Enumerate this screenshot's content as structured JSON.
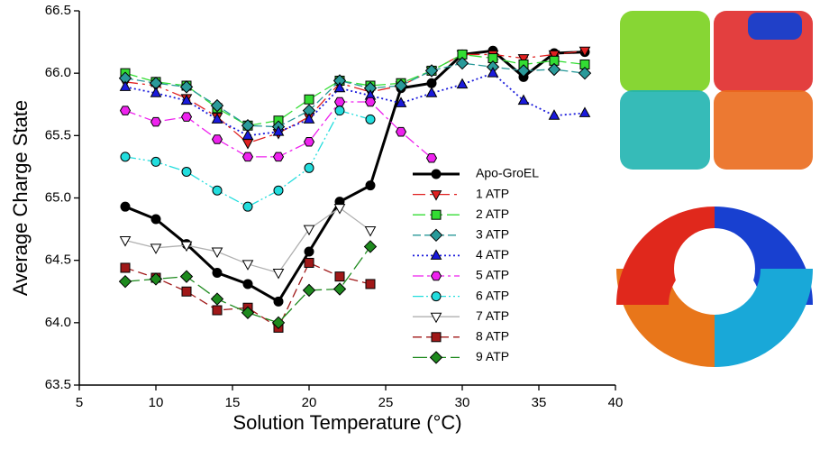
{
  "chart_data": {
    "type": "line",
    "xlabel": "Solution Temperature (°C)",
    "ylabel": "Average Charge State",
    "x": [
      8,
      10,
      12,
      14,
      16,
      18,
      20,
      22,
      24,
      26,
      28,
      30,
      32,
      34,
      36,
      38
    ],
    "xlim": [
      5,
      40
    ],
    "xticks": [
      5,
      10,
      15,
      20,
      25,
      30,
      35,
      40
    ],
    "ylim": [
      63.5,
      66.5
    ],
    "yticks": [
      63.5,
      {
        "value": 64,
        "label": "64.0"
      },
      64.5,
      {
        "value": 65,
        "label": "65.0"
      },
      65.5,
      {
        "value": 66,
        "label": "66.0"
      },
      66.5
    ],
    "legend": "lower right",
    "series": [
      {
        "name": "Apo-GroEL",
        "color": "#000000",
        "marker": "circle",
        "dash": "",
        "width": 3,
        "values": [
          64.93,
          64.83,
          64.63,
          64.4,
          64.31,
          64.17,
          64.57,
          64.97,
          65.1,
          65.88,
          65.92,
          66.15,
          66.18,
          65.97,
          66.16,
          66.17
        ]
      },
      {
        "name": "1 ATP",
        "color": "#e02020",
        "marker": "triangle-down",
        "dash": "14,5,3,5",
        "width": 1.3,
        "values": [
          65.93,
          65.9,
          65.8,
          65.65,
          65.44,
          65.52,
          65.65,
          65.92,
          65.85,
          65.9,
          66.02,
          66.15,
          66.15,
          66.12,
          66.15,
          66.18
        ]
      },
      {
        "name": "2 ATP",
        "color": "#33dd33",
        "marker": "square",
        "dash": "14,5",
        "width": 1.3,
        "values": [
          66.0,
          65.93,
          65.9,
          65.72,
          65.58,
          65.62,
          65.79,
          65.94,
          65.9,
          65.92,
          66.02,
          66.15,
          66.12,
          66.07,
          66.1,
          66.07
        ]
      },
      {
        "name": "3 ATP",
        "color": "#2a9a9a",
        "marker": "diamond",
        "dash": "9,4",
        "width": 1.3,
        "values": [
          65.96,
          65.92,
          65.89,
          65.74,
          65.58,
          65.57,
          65.7,
          65.94,
          65.88,
          65.9,
          66.02,
          66.08,
          66.05,
          66.02,
          66.03,
          66.0
        ]
      },
      {
        "name": "4 ATP",
        "color": "#1a1adc",
        "marker": "triangle-up",
        "dash": "2,3",
        "width": 1.8,
        "values": [
          65.89,
          65.84,
          65.78,
          65.63,
          65.5,
          65.53,
          65.63,
          65.88,
          65.82,
          65.76,
          65.84,
          65.91,
          66.0,
          65.78,
          65.66,
          65.68
        ]
      },
      {
        "name": "5 ATP",
        "color": "#ee22ee",
        "marker": "hexagon",
        "dash": "12,4,3,4",
        "width": 1.3,
        "values": [
          65.7,
          65.61,
          65.65,
          65.47,
          65.33,
          65.33,
          65.45,
          65.77,
          65.77,
          65.53,
          65.32,
          null,
          null,
          null,
          null,
          null
        ]
      },
      {
        "name": "6 ATP",
        "color": "#22dddd",
        "marker": "circle",
        "dash": "12,3,2,3,2,3",
        "width": 1.3,
        "values": [
          65.33,
          65.29,
          65.21,
          65.06,
          64.93,
          65.06,
          65.24,
          65.7,
          65.63,
          null,
          null,
          null,
          null,
          null,
          null,
          null
        ]
      },
      {
        "name": "7 ATP",
        "color": "#b0b0b0",
        "marker_fill": "#ffffff",
        "marker": "triangle-down",
        "dash": "",
        "width": 1.3,
        "values": [
          64.66,
          64.6,
          64.62,
          64.57,
          64.47,
          64.4,
          64.75,
          64.92,
          64.74,
          null,
          null,
          null,
          null,
          null,
          null,
          null
        ]
      },
      {
        "name": "8 ATP",
        "color": "#a01818",
        "marker": "square",
        "dash": "10,5",
        "width": 1.3,
        "values": [
          64.44,
          64.36,
          64.25,
          64.1,
          64.12,
          63.96,
          64.48,
          64.37,
          64.31,
          null,
          null,
          null,
          null,
          null,
          null,
          null
        ]
      },
      {
        "name": "9 ATP",
        "color": "#1e8a1e",
        "marker": "diamond",
        "dash": "16,5",
        "width": 1.3,
        "values": [
          64.33,
          64.35,
          64.37,
          64.19,
          64.08,
          64.0,
          64.26,
          64.27,
          64.61,
          null,
          null,
          null,
          null,
          null,
          null,
          null
        ]
      }
    ]
  }
}
